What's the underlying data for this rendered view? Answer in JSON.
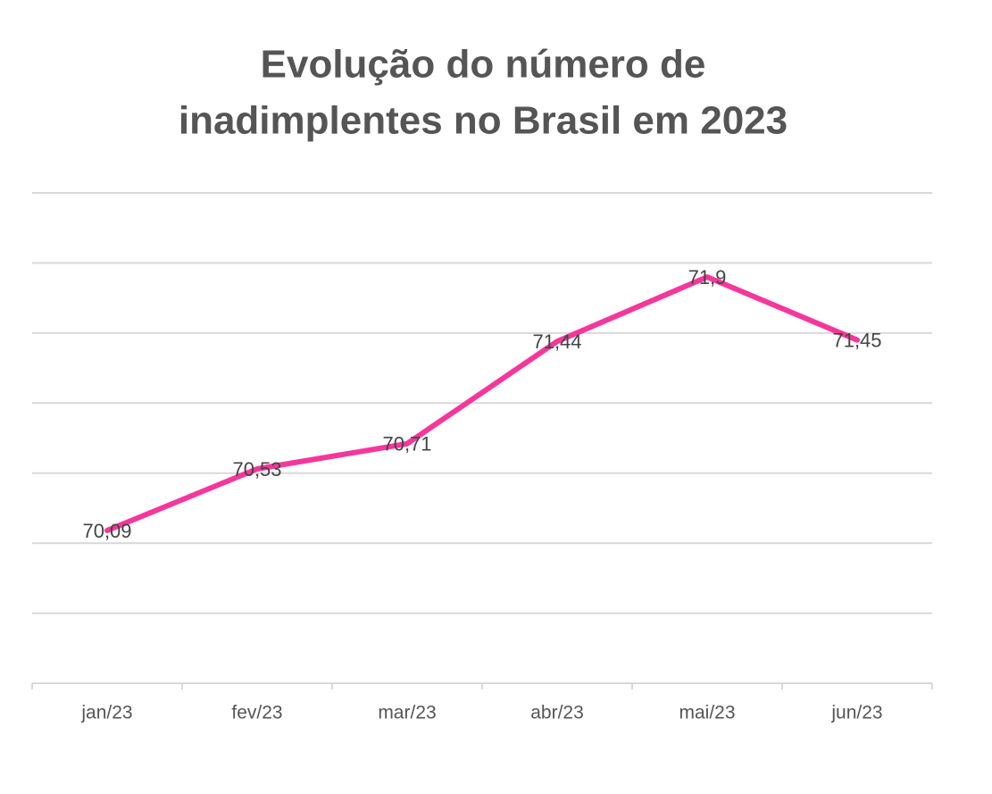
{
  "chart_data": {
    "type": "line",
    "title": [
      "Evolução do número de",
      "inadimplentes no Brasil em 2023"
    ],
    "categories": [
      "jan/23",
      "fev/23",
      "mar/23",
      "abr/23",
      "mai/23",
      "jun/23"
    ],
    "values": [
      70.09,
      70.53,
      70.71,
      71.44,
      71.9,
      71.45
    ],
    "value_labels": [
      "70,09",
      "70,53",
      "70,71",
      "71,44",
      "71,9",
      "71,45"
    ],
    "color": "#f5379b",
    "ylim": [
      69,
      72.5
    ],
    "yticks": [
      69,
      69.5,
      70,
      70.5,
      71,
      71.5,
      72,
      72.5
    ],
    "grid": true
  }
}
